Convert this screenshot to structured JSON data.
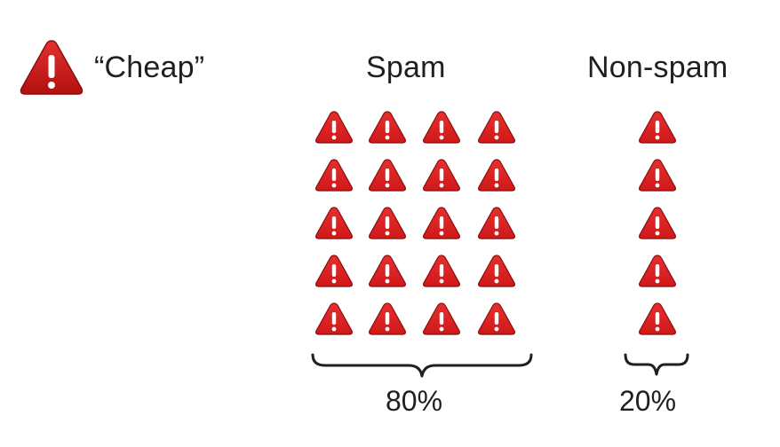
{
  "legend": {
    "icon": "warning-triangle-icon",
    "label": "“Cheap”"
  },
  "groups": {
    "spam": {
      "title": "Spam",
      "icon_rows": 5,
      "icon_cols": 4,
      "icon_count": 20,
      "percent": "80%"
    },
    "nonspam": {
      "title": "Non-spam",
      "icon_rows": 5,
      "icon_cols": 1,
      "icon_count": 5,
      "percent": "20%"
    }
  },
  "colors": {
    "icon_red": "#d01818",
    "icon_dark": "#8a0d0d",
    "text": "#1f1f1f"
  }
}
